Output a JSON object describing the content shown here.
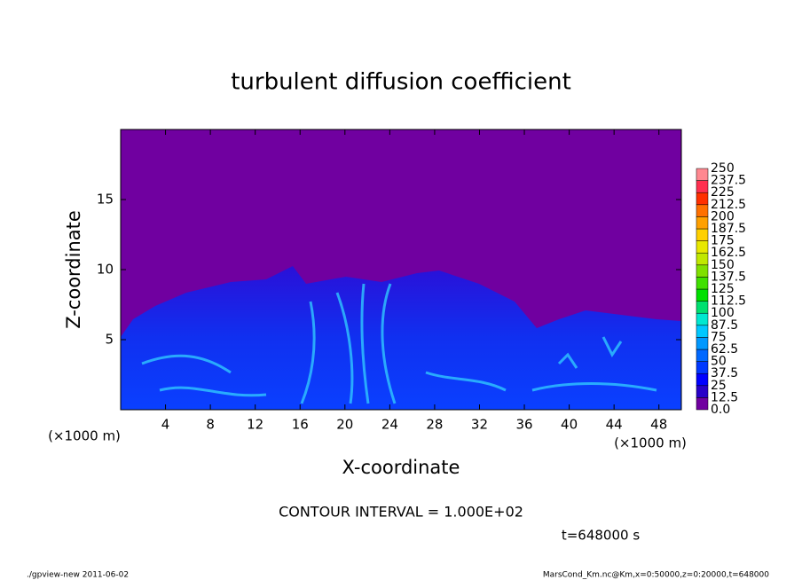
{
  "chart_data": {
    "type": "contour",
    "title": "turbulent diffusion coefficient",
    "x_label": "X-coordinate",
    "y_label": "Z-coordinate",
    "x_unit": "(×1000 m)",
    "y_unit": "(×1000 m)",
    "xlim": [
      0,
      50
    ],
    "ylim": [
      0,
      20
    ],
    "xticks": [
      4,
      8,
      12,
      16,
      20,
      24,
      28,
      32,
      36,
      40,
      44,
      48
    ],
    "yticks": [
      5,
      10,
      15
    ],
    "colorbar": {
      "levels": [
        {
          "value": 0,
          "label": "0.0"
        },
        12.5,
        25,
        37.5,
        50,
        62.5,
        75,
        87.5,
        100,
        112.5,
        125,
        137.5,
        150,
        162.5,
        175,
        187.5,
        200,
        212.5,
        225,
        237.5,
        250
      ],
      "colors": [
        "#7000a0",
        "#2800c8",
        "#0000ff",
        "#0038ff",
        "#0068ff",
        "#0098ff",
        "#00c8ff",
        "#00e8d0",
        "#00e070",
        "#00e000",
        "#40e000",
        "#80e000",
        "#c0e800",
        "#e8e800",
        "#ffd000",
        "#ffa000",
        "#ff7000",
        "#ff3000",
        "#ff3050",
        "#ff8890"
      ]
    },
    "annotation": "CONTOUR INTERVAL = 1.000E+02",
    "time_label": "t=648000 s",
    "footer_left": "./gpview-new  2011-06-02",
    "footer_right": "MarsCond_Km.nc@Km,x=0:50000,z=0:20000,t=648000"
  }
}
